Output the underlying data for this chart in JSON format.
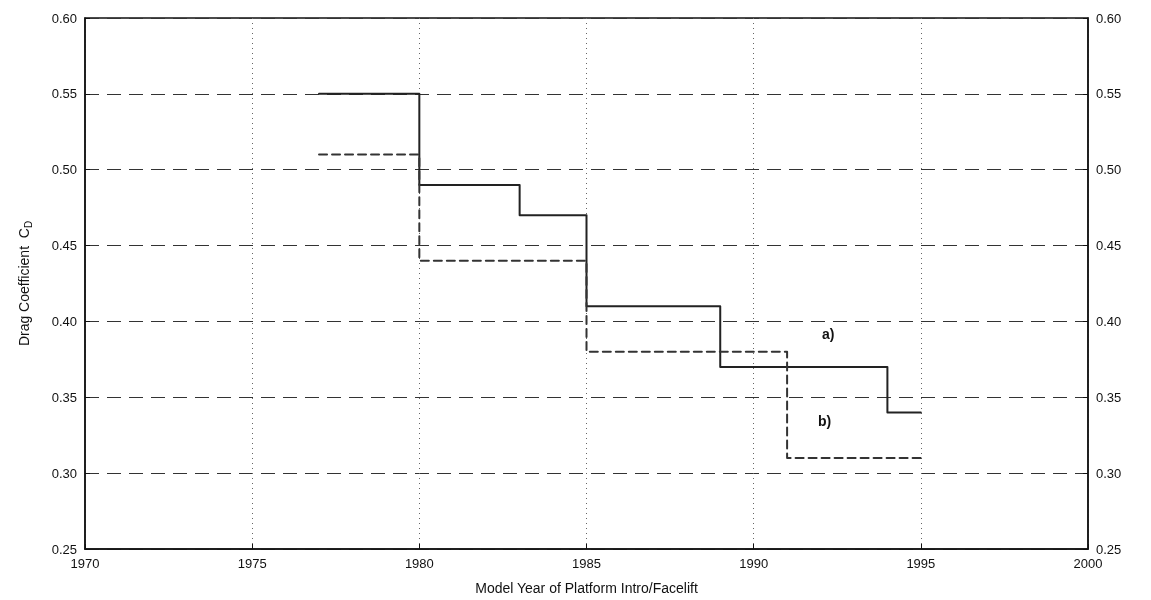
{
  "chart_data": {
    "type": "step",
    "xlabel": "Model Year of Platform Intro/Facelift",
    "ylabel": "Drag Coefficient  C$_{D}$",
    "xlim": [
      1970,
      2000
    ],
    "xticks": [
      1970,
      1975,
      1980,
      1985,
      1990,
      1995,
      2000
    ],
    "ylim": [
      0.25,
      0.6
    ],
    "yticks": [
      0.25,
      {
        "value": 0.3,
        "label": "0.30"
      },
      0.35,
      {
        "value": 0.4,
        "label": "0.40"
      },
      0.45,
      {
        "value": 0.5,
        "label": "0.50"
      },
      0.55,
      {
        "value": 0.6,
        "label": "0.60"
      }
    ],
    "y2lim": [
      0.25,
      0.6
    ],
    "y2ticks": [
      0.25,
      {
        "value": 0.3,
        "label": "0.30"
      },
      0.35,
      {
        "value": 0.4,
        "label": "0.40"
      },
      0.45,
      {
        "value": 0.5,
        "label": "0.50"
      },
      0.55,
      {
        "value": 0.6,
        "label": "0.60"
      }
    ],
    "grid": true,
    "marker": "none",
    "annotations": [
      "a)",
      "b)"
    ],
    "series": [
      {
        "color": "#222222",
        "line_style": "solid",
        "x": [
          1977,
          1980,
          1983,
          1985,
          1989,
          1994,
          1995
        ],
        "values": [
          0.55,
          0.49,
          0.47,
          0.41,
          0.37,
          0.34,
          0.34
        ]
      },
      {
        "color": "#333333",
        "line_style": "dashed",
        "x": [
          1977,
          1980,
          1985,
          1991,
          1995
        ],
        "values": [
          0.51,
          0.44,
          0.38,
          0.31,
          0.31
        ]
      }
    ]
  }
}
